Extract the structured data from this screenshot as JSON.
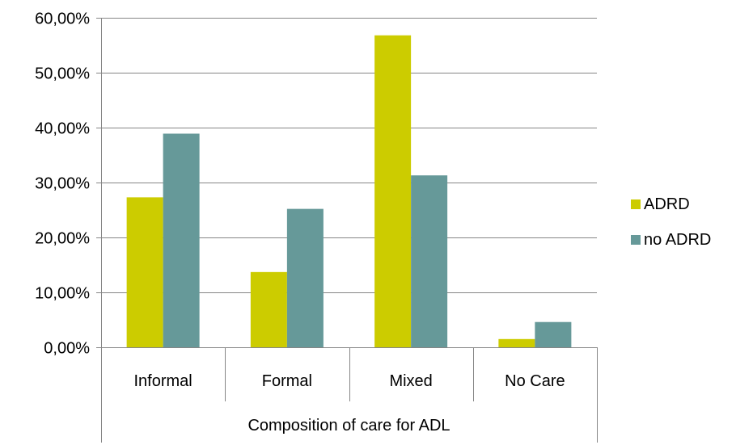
{
  "chart_data": {
    "type": "bar",
    "categories": [
      "Informal",
      "Formal",
      "Mixed",
      "No Care"
    ],
    "series": [
      {
        "name": "ADRD",
        "values": [
          27.3,
          13.7,
          56.8,
          1.5
        ],
        "color": "#cccc00"
      },
      {
        "name": "no ADRD",
        "values": [
          38.9,
          25.2,
          31.3,
          4.6
        ],
        "color": "#669999"
      }
    ],
    "xlabel": "Composition of care for ADL",
    "ylabel": "",
    "ylim": [
      0,
      60
    ],
    "yticks": [
      {
        "value": 0,
        "label": "0,00%"
      },
      {
        "value": 10,
        "label": "10,00%"
      },
      {
        "value": 20,
        "label": "20,00%"
      },
      {
        "value": 30,
        "label": "30,00%"
      },
      {
        "value": 40,
        "label": "40,00%"
      },
      {
        "value": 50,
        "label": "50,00%"
      },
      {
        "value": 60,
        "label": "60,00%"
      }
    ],
    "grid": true,
    "legend_position": "right",
    "gridline_color": "#868686",
    "axis_color": "#868686"
  }
}
